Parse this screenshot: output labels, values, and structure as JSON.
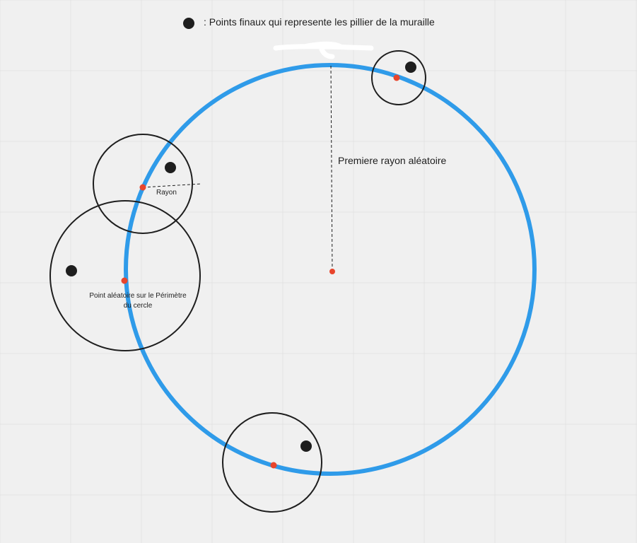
{
  "legend": {
    "text": ": Points finaux qui represente les pillier de la muraille"
  },
  "labels": {
    "main_radius": "Premiere rayon aléatoire",
    "small_radius": "Rayon",
    "perimeter_point": "Point aléatoire sur le Périmètre du cercle"
  },
  "colors": {
    "background": "#f0f0f0",
    "grid": "#e3e3e3",
    "main_circle": "#2f9be9",
    "helper_circle": "#1e1e1e",
    "random_point": "#e8452c",
    "pillar_point": "#1e1e1e"
  }
}
